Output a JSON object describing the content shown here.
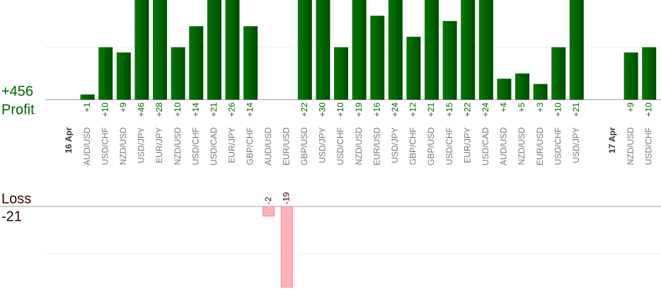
{
  "chart_data": {
    "type": "bar",
    "profit_label": "Profit",
    "loss_label": "Loss",
    "profit_total": {
      "value": 456,
      "label": "+456"
    },
    "loss_total": -21,
    "profit_color": "#006400",
    "loss_color": "#ffb3b8",
    "ylim": [
      0,
      19
    ],
    "loss_ylim": [
      -17,
      0
    ],
    "grid_values": [
      10,
      -10
    ],
    "groups": [
      {
        "date": "16 Apr",
        "categories": [
          "AUD/USD",
          "USD/CHF",
          "NZD/USD",
          "USD/JPY",
          "EUR/JPY",
          "NZD/USD",
          "USD/CHF",
          "USD/CAD",
          "EUR/JPY",
          "GBP/CHF",
          "AUD/USD",
          "EUR/USD",
          "GBP/USD",
          "USD/JPY",
          "USD/CHF",
          "NZD/USD",
          "EUR/USD",
          "USD/JPY",
          "GBP/CHF",
          "GBP/USD",
          "USD/CHF",
          "EUR/JPY",
          "USD/CAD",
          "AUD/USD",
          "NZD/USD",
          "EUR/USD",
          "USD/CHF",
          "USD/JPY"
        ],
        "values": [
          1,
          10,
          9,
          46,
          28,
          10,
          14,
          21,
          26,
          14,
          -2,
          -19,
          22,
          30,
          10,
          19,
          16,
          24,
          12,
          21,
          15,
          22,
          24,
          4,
          5,
          3,
          10,
          21
        ],
        "value_labels": [
          "+1",
          "+10",
          "+9",
          "+46",
          "+28",
          "+10",
          "+14",
          "+21",
          "+26",
          "+14",
          "-2",
          "-19",
          "+22",
          "+30",
          "+10",
          "+19",
          "+16",
          "+24",
          "+12",
          "+21",
          "+15",
          "+22",
          "+24",
          "+4",
          "+5",
          "+3",
          "+10",
          "+21"
        ]
      },
      {
        "date": "17 Apr",
        "categories": [
          "NZD/USD",
          "USD/CHF"
        ],
        "values": [
          9,
          10
        ],
        "value_labels": [
          "+9",
          "+10"
        ]
      }
    ]
  }
}
